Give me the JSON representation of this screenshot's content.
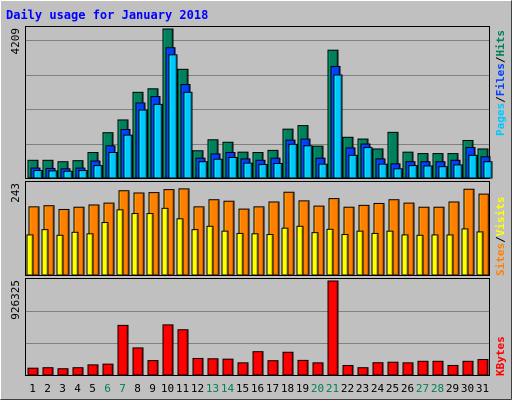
{
  "title": "Daily usage for January 2018",
  "colors": {
    "background": "#c0c0c0",
    "plot_area": "#c0c0c0",
    "grid": "#808080",
    "title": "#0000ff",
    "axis_text": "#000000",
    "weekend_text": "#00805c",
    "hits": "#00805c",
    "files": "#0040ff",
    "pages": "#00c8ff",
    "visits": "#ffff00",
    "sites": "#ff8000",
    "kbytes": "#ff0000",
    "separator": "#000000"
  },
  "legend": {
    "pages": "Pages",
    "files": "Files",
    "hits": "Hits",
    "sites": "Sites",
    "visits": "Visits",
    "kbytes": "KBytes",
    "slash": "/"
  },
  "chart_data": [
    {
      "type": "bar",
      "title": "Daily usage for January 2018",
      "x": [
        "1",
        "2",
        "3",
        "4",
        "5",
        "6",
        "7",
        "8",
        "9",
        "10",
        "11",
        "12",
        "13",
        "14",
        "15",
        "16",
        "17",
        "18",
        "19",
        "20",
        "21",
        "22",
        "23",
        "24",
        "25",
        "26",
        "27",
        "28",
        "29",
        "30",
        "31"
      ],
      "weekend_days": [
        "6",
        "7",
        "13",
        "14",
        "20",
        "21",
        "27",
        "28"
      ],
      "ylim": [
        0,
        4209
      ],
      "y_tick_label": "4209",
      "series": [
        {
          "name": "Hits",
          "values": [
            500,
            500,
            460,
            490,
            720,
            1280,
            1640,
            2420,
            2520,
            4209,
            3070,
            770,
            1080,
            1010,
            730,
            720,
            780,
            1380,
            1480,
            900,
            3610,
            1150,
            1100,
            820,
            1290,
            730,
            690,
            690,
            690,
            1060,
            820
          ]
        },
        {
          "name": "Files",
          "values": [
            280,
            270,
            260,
            280,
            480,
            910,
            1370,
            2120,
            2300,
            3680,
            2640,
            560,
            680,
            720,
            540,
            500,
            560,
            1070,
            1100,
            560,
            3150,
            850,
            960,
            540,
            400,
            460,
            460,
            460,
            500,
            860,
            600
          ]
        },
        {
          "name": "Pages",
          "values": [
            210,
            200,
            190,
            210,
            350,
            720,
            1210,
            1920,
            2080,
            3480,
            2420,
            460,
            530,
            580,
            420,
            380,
            410,
            950,
            910,
            390,
            2910,
            640,
            860,
            390,
            260,
            350,
            340,
            320,
            370,
            640,
            460
          ]
        }
      ]
    },
    {
      "type": "bar",
      "x": [
        "1",
        "2",
        "3",
        "4",
        "5",
        "6",
        "7",
        "8",
        "9",
        "10",
        "11",
        "12",
        "13",
        "14",
        "15",
        "16",
        "17",
        "18",
        "19",
        "20",
        "21",
        "22",
        "23",
        "24",
        "25",
        "26",
        "27",
        "28",
        "29",
        "30",
        "31"
      ],
      "ylim": [
        0,
        243
      ],
      "y_tick_label": "243",
      "series": [
        {
          "name": "Sites",
          "values": [
            182,
            185,
            175,
            181,
            187,
            192,
            225,
            219,
            220,
            228,
            230,
            182,
            201,
            197,
            176,
            182,
            195,
            221,
            198,
            184,
            204,
            181,
            186,
            191,
            201,
            192,
            181,
            181,
            195,
            229,
            216
          ]
        },
        {
          "name": "Visits",
          "values": [
            107,
            121,
            106,
            114,
            110,
            140,
            174,
            164,
            164,
            178,
            150,
            121,
            130,
            117,
            111,
            110,
            108,
            125,
            130,
            113,
            122,
            108,
            117,
            111,
            117,
            107,
            106,
            107,
            107,
            123,
            115
          ]
        }
      ]
    },
    {
      "type": "bar",
      "x": [
        "1",
        "2",
        "3",
        "4",
        "5",
        "6",
        "7",
        "8",
        "9",
        "10",
        "11",
        "12",
        "13",
        "14",
        "15",
        "16",
        "17",
        "18",
        "19",
        "20",
        "21",
        "22",
        "23",
        "24",
        "25",
        "26",
        "27",
        "28",
        "29",
        "30",
        "31"
      ],
      "ylim": [
        0,
        926325
      ],
      "y_tick_label": "926325",
      "series": [
        {
          "name": "KBytes",
          "values": [
            67000,
            72000,
            62000,
            72000,
            100000,
            107000,
            489000,
            267000,
            142000,
            494000,
            446000,
            163000,
            160000,
            156000,
            120000,
            230000,
            141000,
            224000,
            144000,
            120000,
            926325,
            93000,
            72000,
            121000,
            126000,
            120000,
            135000,
            135000,
            94000,
            135000,
            152000
          ]
        }
      ]
    }
  ]
}
